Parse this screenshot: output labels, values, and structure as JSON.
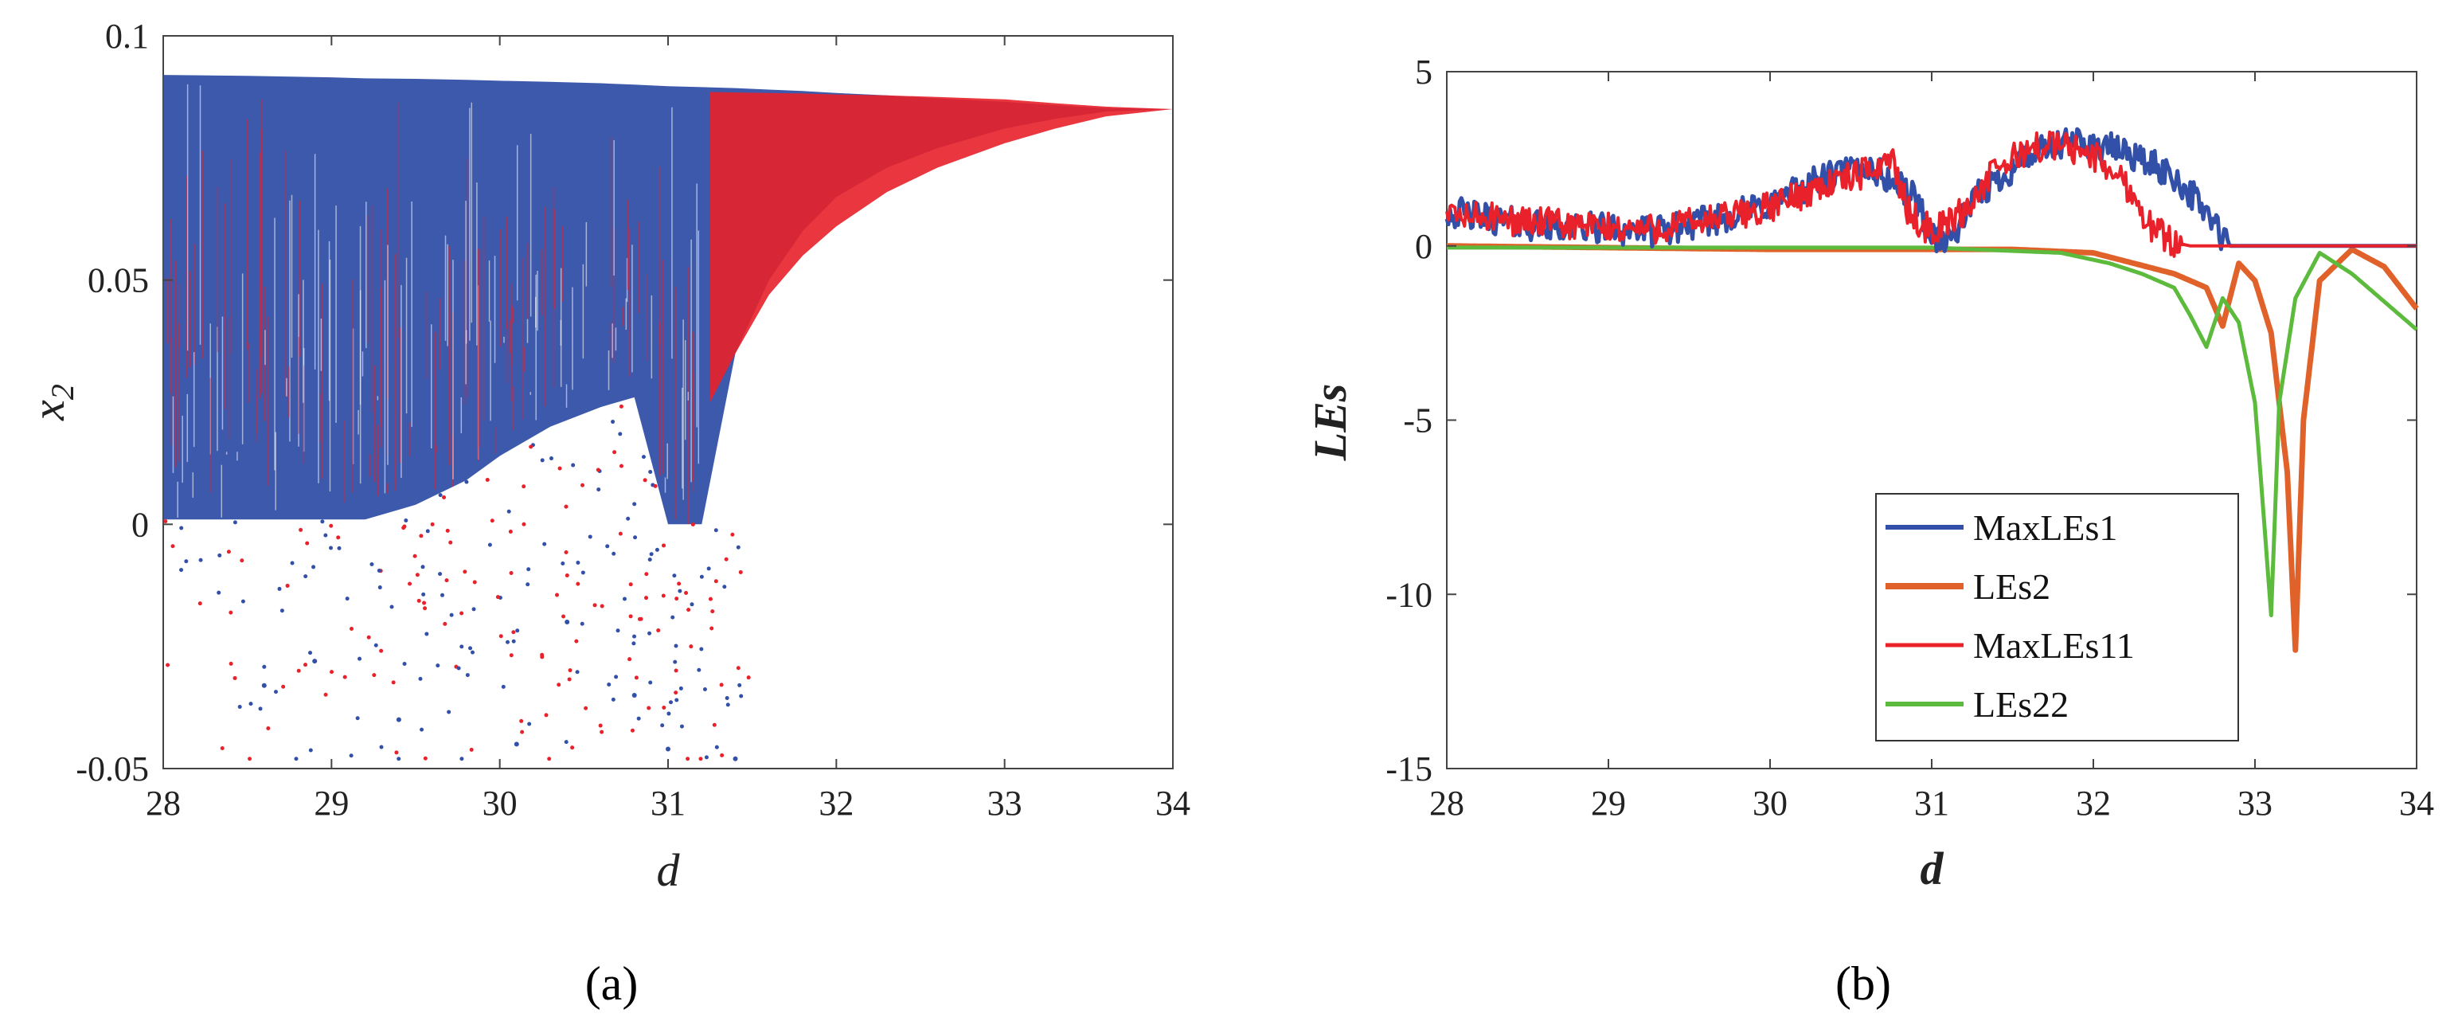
{
  "chart_data": [
    {
      "id": "a",
      "type": "scatter",
      "caption": "(a)",
      "xlabel": "d",
      "ylabel": "x",
      "ylabel_sub": "2",
      "xlim": [
        28,
        34
      ],
      "ylim": [
        -0.05,
        0.1
      ],
      "xticks": [
        "28",
        "29",
        "30",
        "31",
        "32",
        "33",
        "34"
      ],
      "yticks": [
        "0.1",
        "0.05",
        "0",
        "-0.05"
      ],
      "ytick_values": [
        0.1,
        0.05,
        0,
        -0.05
      ],
      "series": [
        {
          "color": "#3350a8",
          "envelope_d": [
            28,
            28.5,
            29,
            29.2,
            29.5,
            29.8,
            30,
            30.3,
            30.6,
            30.8,
            31,
            31.2,
            31.4,
            31.6,
            31.8,
            32,
            32.3,
            32.6,
            33,
            33.3,
            33.6,
            34
          ],
          "upper": [
            0.092,
            0.0918,
            0.0915,
            0.0913,
            0.0912,
            0.091,
            0.0908,
            0.0906,
            0.0903,
            0.09,
            0.0897,
            0.0895,
            0.0893,
            0.089,
            0.0887,
            0.0883,
            0.0878,
            0.0872,
            0.0865,
            0.0858,
            0.0852,
            0.085
          ],
          "lower": [
            0.001,
            0.001,
            0.001,
            0.001,
            0.004,
            0.009,
            0.014,
            0.02,
            0.024,
            0.026,
            0.0,
            0.0,
            0.035,
            0.05,
            0.06,
            0.067,
            0.073,
            0.077,
            0.081,
            0.083,
            0.0845,
            0.085
          ]
        },
        {
          "color": "#e8212a",
          "envelope_d": [
            31.25,
            31.4,
            31.6,
            31.8,
            32,
            32.3,
            32.6,
            33,
            33.3,
            33.6,
            34
          ],
          "upper": [
            0.0885,
            0.0884,
            0.0883,
            0.0882,
            0.088,
            0.0878,
            0.0875,
            0.087,
            0.0862,
            0.0855,
            0.085
          ],
          "lower": [
            0.025,
            0.035,
            0.047,
            0.055,
            0.061,
            0.068,
            0.073,
            0.078,
            0.081,
            0.0835,
            0.085
          ]
        }
      ],
      "scattered_points": [
        [
          28.6,
          -0.033
        ],
        [
          28.9,
          -0.028
        ],
        [
          29.4,
          -0.04
        ],
        [
          30.1,
          -0.045
        ],
        [
          30.4,
          -0.02
        ],
        [
          30.8,
          -0.035
        ],
        [
          31.0,
          -0.046
        ],
        [
          31.4,
          -0.048
        ]
      ]
    },
    {
      "id": "b",
      "type": "line",
      "caption": "(b)",
      "xlabel": "d",
      "ylabel": "LEs",
      "xlim": [
        28,
        34
      ],
      "ylim": [
        -15,
        5
      ],
      "xticks": [
        "28",
        "29",
        "30",
        "31",
        "32",
        "33",
        "34"
      ],
      "yticks": [
        "5",
        "0",
        "-5",
        "-10",
        "-15"
      ],
      "ytick_values": [
        5,
        0,
        -5,
        -10,
        -15
      ],
      "legend_position": "bottom-right",
      "series": [
        {
          "name": "MaxLEs1",
          "color": "#3350a8",
          "width": 5,
          "x": [
            28,
            28.5,
            29,
            29.3,
            29.7,
            30,
            30.3,
            30.6,
            30.9,
            31.0,
            31.1,
            31.3,
            31.6,
            31.9,
            32.2,
            32.5,
            32.7,
            32.8,
            32.85,
            33,
            34
          ],
          "y": [
            1,
            0.6,
            0.5,
            0.4,
            0.8,
            1.2,
            1.9,
            2.3,
            1.4,
            0.3,
            0.1,
            1.5,
            2.6,
            3.0,
            2.7,
            2.0,
            1.0,
            0.2,
            0,
            0,
            0
          ]
        },
        {
          "name": "LEs2",
          "color": "#e0622a",
          "width": 7,
          "x": [
            28,
            29,
            30,
            31,
            31.5,
            32,
            32.5,
            32.7,
            32.8,
            32.9,
            33.0,
            33.1,
            33.2,
            33.25,
            33.3,
            33.4,
            33.6,
            33.8,
            34
          ],
          "y": [
            0,
            -0.05,
            -0.1,
            -0.1,
            -0.1,
            -0.2,
            -0.8,
            -1.2,
            -2.3,
            -0.5,
            -1.0,
            -2.5,
            -6.5,
            -11.6,
            -5.0,
            -1.0,
            -0.1,
            -0.6,
            -1.8
          ]
        },
        {
          "name": "MaxLEs11",
          "color": "#e8212a",
          "width": 4,
          "x": [
            28,
            28.5,
            29,
            29.3,
            29.7,
            30,
            30.3,
            30.6,
            30.75,
            30.85,
            31.0,
            31.2,
            31.4,
            31.6,
            31.8,
            32.0,
            32.2,
            32.35,
            32.5,
            32.6,
            33,
            34
          ],
          "y": [
            0.9,
            0.7,
            0.5,
            0.5,
            0.8,
            1.1,
            1.7,
            2.1,
            2.6,
            1.0,
            0.4,
            1.0,
            2.2,
            2.8,
            2.9,
            2.6,
            1.8,
            0.6,
            0.1,
            0,
            0,
            0
          ]
        },
        {
          "name": "LEs22",
          "color": "#5cba3c",
          "width": 5,
          "x": [
            28,
            29,
            30,
            31,
            31.8,
            32.1,
            32.3,
            32.5,
            32.6,
            32.7,
            32.8,
            32.9,
            33.0,
            33.05,
            33.1,
            33.15,
            33.25,
            33.4,
            33.6,
            34
          ],
          "y": [
            -0.05,
            -0.05,
            -0.05,
            -0.05,
            -0.2,
            -0.5,
            -0.8,
            -1.2,
            -2.0,
            -2.9,
            -1.5,
            -2.2,
            -4.5,
            -7.5,
            -10.6,
            -4.5,
            -1.5,
            -0.2,
            -0.8,
            -2.4
          ]
        }
      ]
    }
  ]
}
